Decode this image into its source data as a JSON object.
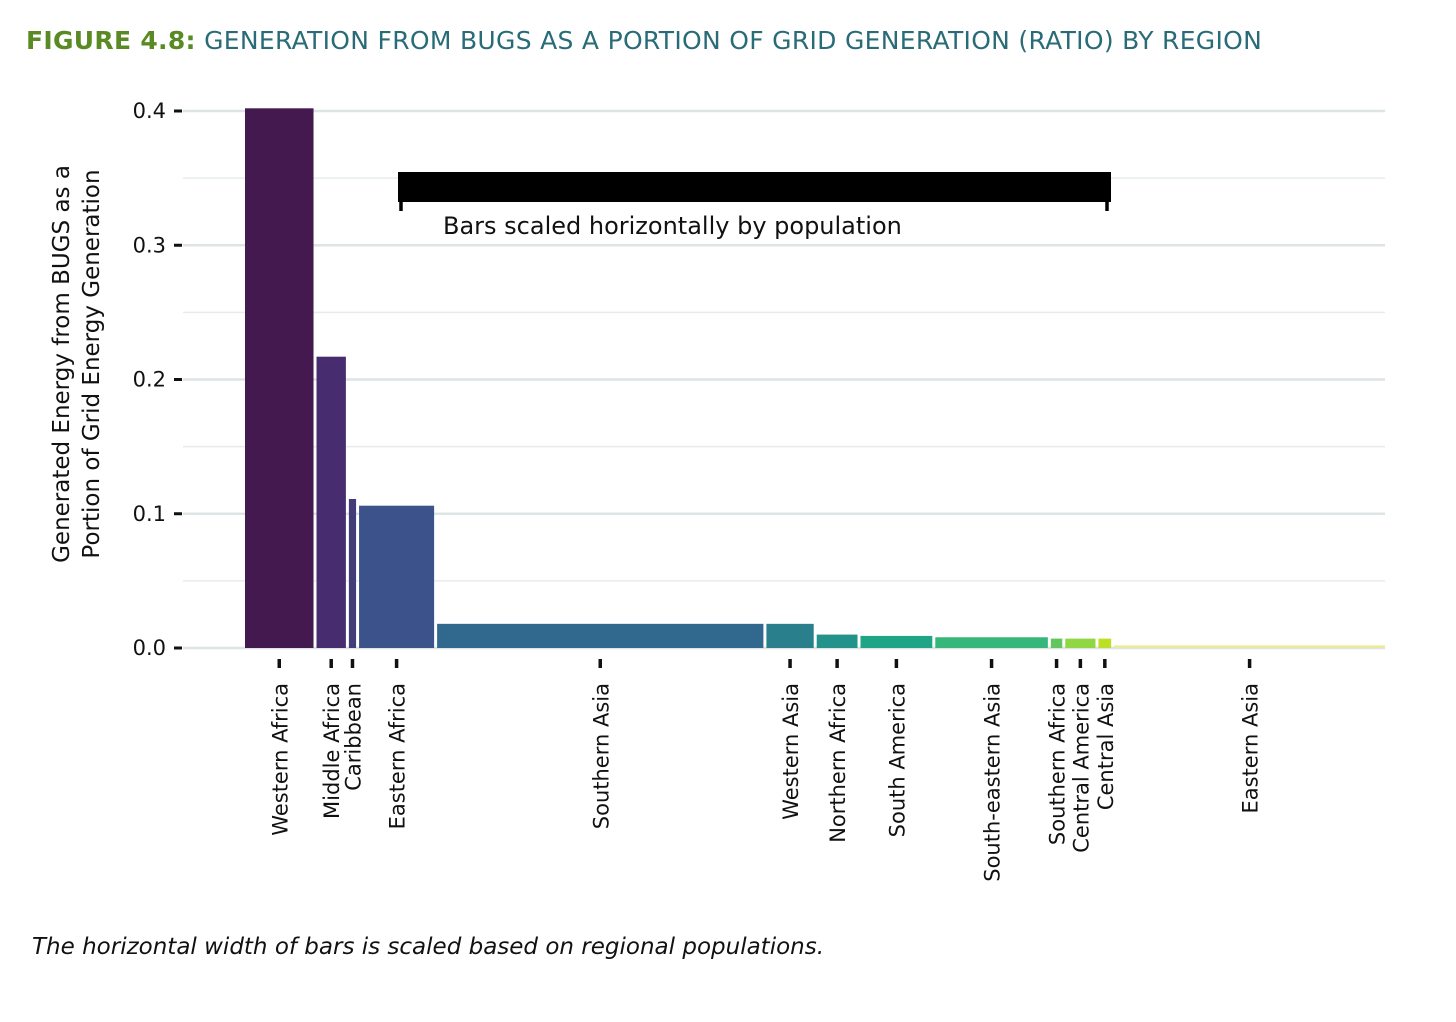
{
  "figure": {
    "label": "FIGURE 4.8:",
    "title": "GENERATION FROM BUGS AS A PORTION OF GRID GENERATION (RATIO) BY REGION",
    "caption": "The horizontal width of bars is scaled based on regional populations."
  },
  "chart_data": {
    "type": "bar",
    "title": "GENERATION FROM BUGS AS A PORTION OF GRID GENERATION (RATIO) BY REGION",
    "xlabel": "",
    "ylabel_lines": [
      "Generated Energy from BUGS as a",
      "Portion of Grid Energy Generation"
    ],
    "ylim": [
      0,
      0.4
    ],
    "yticks": [
      0.0,
      0.1,
      0.2,
      0.3,
      0.4
    ],
    "ytick_labels": [
      "0.0",
      "0.1",
      "0.2",
      "0.3",
      "0.4"
    ],
    "grid": true,
    "annotation": "Bars scaled horizontally by population",
    "categories": [
      "Western Africa",
      "Middle Africa",
      "Caribbean",
      "Eastern Africa",
      "Southern Asia",
      "Western Asia",
      "Northern Africa",
      "South America",
      "South-eastern Asia",
      "Southern Africa",
      "Central America",
      "Central Asia",
      "Eastern Asia"
    ],
    "values": [
      0.402,
      0.217,
      0.111,
      0.106,
      0.018,
      0.018,
      0.01,
      0.009,
      0.008,
      0.007,
      0.007,
      0.007,
      0.002
    ],
    "population_millions": [
      420,
      180,
      44,
      460,
      2000,
      290,
      250,
      440,
      690,
      70,
      185,
      78,
      1660
    ],
    "colors": [
      "#44194f",
      "#472d70",
      "#423c78",
      "#3b528b",
      "#31688e",
      "#2a7f8d",
      "#23928b",
      "#20a486",
      "#35b779",
      "#61c560",
      "#90d743",
      "#bddf26",
      "#ecea9c"
    ]
  }
}
